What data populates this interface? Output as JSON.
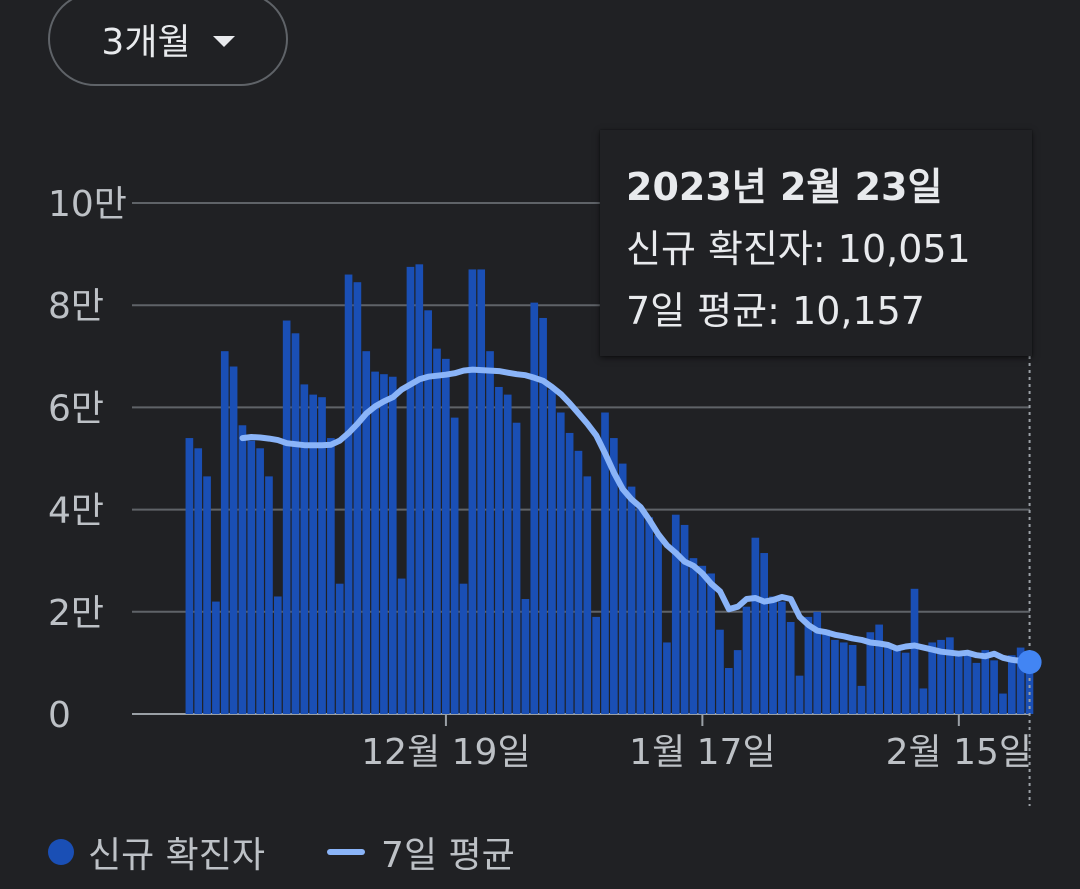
{
  "range_selector": {
    "label": "3개월",
    "icon": "dropdown-triangle-icon"
  },
  "tooltip": {
    "date": "2023년 2월 23일",
    "line1": "신규 확진자: 10,051",
    "line2": "7일 평균: 10,157"
  },
  "legend": {
    "bars_label": "신규 확진자",
    "line_label": "7일 평균"
  },
  "colors": {
    "bars": "#1a4fb5",
    "line": "#8ab4f8",
    "marker": "#4285f4",
    "grid": "#5f6368",
    "background": "#202124"
  },
  "chart_data": {
    "type": "bar",
    "ylim": [
      0,
      100000
    ],
    "yticks": [
      {
        "value": 0,
        "label": "0"
      },
      {
        "value": 20000,
        "label": "2만"
      },
      {
        "value": 40000,
        "label": "4만"
      },
      {
        "value": 60000,
        "label": "6만"
      },
      {
        "value": 80000,
        "label": "8만"
      },
      {
        "value": 100000,
        "label": "10만"
      }
    ],
    "xticks": [
      {
        "index": 35,
        "label": "12월 19일"
      },
      {
        "index": 64,
        "label": "1월 17일"
      },
      {
        "index": 93,
        "label": "2월 15일"
      }
    ],
    "selected_index": 101,
    "series": [
      {
        "name": "신규 확진자",
        "type": "bar",
        "values": [
          54000,
          52000,
          46500,
          22000,
          71000,
          68000,
          56500,
          53500,
          52000,
          46500,
          23000,
          77000,
          74500,
          64500,
          62500,
          62000,
          54000,
          25500,
          86000,
          84500,
          71000,
          67000,
          66500,
          66000,
          26500,
          87500,
          88000,
          79000,
          71500,
          69500,
          58000,
          25500,
          87000,
          87000,
          71000,
          64000,
          62500,
          57000,
          22500,
          80500,
          77500,
          63500,
          59000,
          55000,
          51500,
          46500,
          19000,
          59000,
          54000,
          49000,
          44500,
          40500,
          38500,
          35000,
          14000,
          39000,
          37000,
          30500,
          29000,
          27500,
          16500,
          9000,
          12500,
          21000,
          34500,
          31500,
          23000,
          22000,
          18000,
          7500,
          19000,
          20000,
          16500,
          14500,
          14000,
          13500,
          5500,
          16000,
          17500,
          13500,
          13000,
          12000,
          24500,
          5000,
          14000,
          14500,
          15000,
          12000,
          11500,
          10000,
          12500,
          10500,
          4000,
          11500,
          13000,
          10051
        ],
        "x_start": 6
      },
      {
        "name": "7일 평균",
        "type": "line",
        "values": [
          54000,
          54200,
          54100,
          53900,
          53600,
          53000,
          52800,
          52600,
          52600,
          52600,
          52700,
          53500,
          55000,
          56800,
          58800,
          60200,
          61200,
          62000,
          63500,
          64500,
          65500,
          66000,
          66200,
          66400,
          66700,
          67200,
          67400,
          67300,
          67200,
          67100,
          66800,
          66500,
          66300,
          65800,
          65200,
          64000,
          62600,
          60800,
          58800,
          56800,
          54500,
          51000,
          47200,
          44000,
          42000,
          40500,
          38000,
          35200,
          33000,
          31500,
          29800,
          29000,
          27500,
          25500,
          24000,
          20500,
          21000,
          22500,
          22700,
          22000,
          22300,
          22900,
          22500,
          19000,
          17400,
          16300,
          16000,
          15500,
          15200,
          14800,
          14500,
          14000,
          13800,
          13500,
          12800,
          13200,
          13400,
          13000,
          12600,
          12200,
          12000,
          11800,
          12000,
          11500,
          11300,
          11800,
          11000,
          10600,
          10400,
          10157
        ],
        "x_start": 12
      }
    ]
  }
}
